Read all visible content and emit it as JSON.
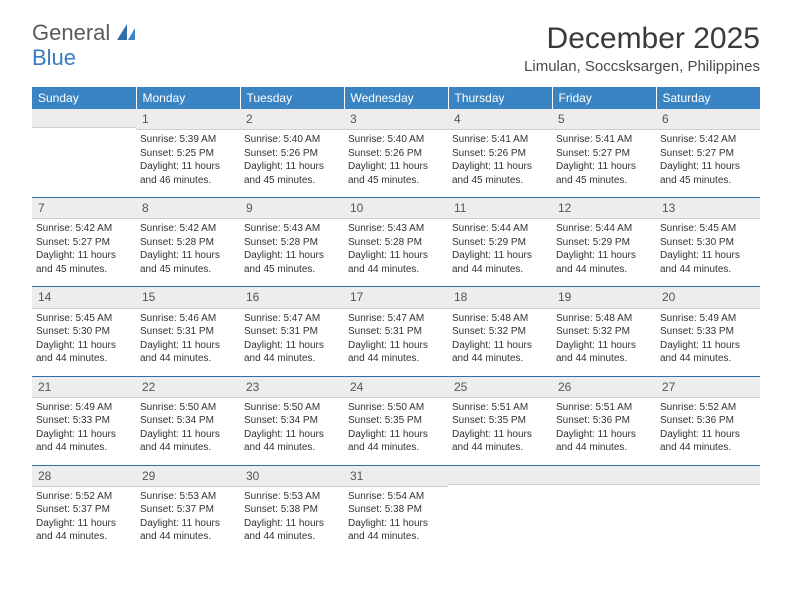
{
  "logo": {
    "word1": "General",
    "word2": "Blue"
  },
  "title": "December 2025",
  "location": "Limulan, Soccsksargen, Philippines",
  "colors": {
    "header_bg": "#3b84c4",
    "header_text": "#ffffff",
    "rule": "#2f6fa8",
    "daynum_bg": "#ededed",
    "text": "#333333",
    "logo_gray": "#5a5a5a",
    "logo_blue": "#3b7bbf"
  },
  "typography": {
    "title_fontsize": 30,
    "location_fontsize": 15,
    "dayheader_fontsize": 12,
    "cell_fontsize": 10
  },
  "day_headers": [
    "Sunday",
    "Monday",
    "Tuesday",
    "Wednesday",
    "Thursday",
    "Friday",
    "Saturday"
  ],
  "weeks": [
    [
      null,
      {
        "n": "1",
        "sunrise": "Sunrise: 5:39 AM",
        "sunset": "Sunset: 5:25 PM",
        "d1": "Daylight: 11 hours",
        "d2": "and 46 minutes."
      },
      {
        "n": "2",
        "sunrise": "Sunrise: 5:40 AM",
        "sunset": "Sunset: 5:26 PM",
        "d1": "Daylight: 11 hours",
        "d2": "and 45 minutes."
      },
      {
        "n": "3",
        "sunrise": "Sunrise: 5:40 AM",
        "sunset": "Sunset: 5:26 PM",
        "d1": "Daylight: 11 hours",
        "d2": "and 45 minutes."
      },
      {
        "n": "4",
        "sunrise": "Sunrise: 5:41 AM",
        "sunset": "Sunset: 5:26 PM",
        "d1": "Daylight: 11 hours",
        "d2": "and 45 minutes."
      },
      {
        "n": "5",
        "sunrise": "Sunrise: 5:41 AM",
        "sunset": "Sunset: 5:27 PM",
        "d1": "Daylight: 11 hours",
        "d2": "and 45 minutes."
      },
      {
        "n": "6",
        "sunrise": "Sunrise: 5:42 AM",
        "sunset": "Sunset: 5:27 PM",
        "d1": "Daylight: 11 hours",
        "d2": "and 45 minutes."
      }
    ],
    [
      {
        "n": "7",
        "sunrise": "Sunrise: 5:42 AM",
        "sunset": "Sunset: 5:27 PM",
        "d1": "Daylight: 11 hours",
        "d2": "and 45 minutes."
      },
      {
        "n": "8",
        "sunrise": "Sunrise: 5:42 AM",
        "sunset": "Sunset: 5:28 PM",
        "d1": "Daylight: 11 hours",
        "d2": "and 45 minutes."
      },
      {
        "n": "9",
        "sunrise": "Sunrise: 5:43 AM",
        "sunset": "Sunset: 5:28 PM",
        "d1": "Daylight: 11 hours",
        "d2": "and 45 minutes."
      },
      {
        "n": "10",
        "sunrise": "Sunrise: 5:43 AM",
        "sunset": "Sunset: 5:28 PM",
        "d1": "Daylight: 11 hours",
        "d2": "and 44 minutes."
      },
      {
        "n": "11",
        "sunrise": "Sunrise: 5:44 AM",
        "sunset": "Sunset: 5:29 PM",
        "d1": "Daylight: 11 hours",
        "d2": "and 44 minutes."
      },
      {
        "n": "12",
        "sunrise": "Sunrise: 5:44 AM",
        "sunset": "Sunset: 5:29 PM",
        "d1": "Daylight: 11 hours",
        "d2": "and 44 minutes."
      },
      {
        "n": "13",
        "sunrise": "Sunrise: 5:45 AM",
        "sunset": "Sunset: 5:30 PM",
        "d1": "Daylight: 11 hours",
        "d2": "and 44 minutes."
      }
    ],
    [
      {
        "n": "14",
        "sunrise": "Sunrise: 5:45 AM",
        "sunset": "Sunset: 5:30 PM",
        "d1": "Daylight: 11 hours",
        "d2": "and 44 minutes."
      },
      {
        "n": "15",
        "sunrise": "Sunrise: 5:46 AM",
        "sunset": "Sunset: 5:31 PM",
        "d1": "Daylight: 11 hours",
        "d2": "and 44 minutes."
      },
      {
        "n": "16",
        "sunrise": "Sunrise: 5:47 AM",
        "sunset": "Sunset: 5:31 PM",
        "d1": "Daylight: 11 hours",
        "d2": "and 44 minutes."
      },
      {
        "n": "17",
        "sunrise": "Sunrise: 5:47 AM",
        "sunset": "Sunset: 5:31 PM",
        "d1": "Daylight: 11 hours",
        "d2": "and 44 minutes."
      },
      {
        "n": "18",
        "sunrise": "Sunrise: 5:48 AM",
        "sunset": "Sunset: 5:32 PM",
        "d1": "Daylight: 11 hours",
        "d2": "and 44 minutes."
      },
      {
        "n": "19",
        "sunrise": "Sunrise: 5:48 AM",
        "sunset": "Sunset: 5:32 PM",
        "d1": "Daylight: 11 hours",
        "d2": "and 44 minutes."
      },
      {
        "n": "20",
        "sunrise": "Sunrise: 5:49 AM",
        "sunset": "Sunset: 5:33 PM",
        "d1": "Daylight: 11 hours",
        "d2": "and 44 minutes."
      }
    ],
    [
      {
        "n": "21",
        "sunrise": "Sunrise: 5:49 AM",
        "sunset": "Sunset: 5:33 PM",
        "d1": "Daylight: 11 hours",
        "d2": "and 44 minutes."
      },
      {
        "n": "22",
        "sunrise": "Sunrise: 5:50 AM",
        "sunset": "Sunset: 5:34 PM",
        "d1": "Daylight: 11 hours",
        "d2": "and 44 minutes."
      },
      {
        "n": "23",
        "sunrise": "Sunrise: 5:50 AM",
        "sunset": "Sunset: 5:34 PM",
        "d1": "Daylight: 11 hours",
        "d2": "and 44 minutes."
      },
      {
        "n": "24",
        "sunrise": "Sunrise: 5:50 AM",
        "sunset": "Sunset: 5:35 PM",
        "d1": "Daylight: 11 hours",
        "d2": "and 44 minutes."
      },
      {
        "n": "25",
        "sunrise": "Sunrise: 5:51 AM",
        "sunset": "Sunset: 5:35 PM",
        "d1": "Daylight: 11 hours",
        "d2": "and 44 minutes."
      },
      {
        "n": "26",
        "sunrise": "Sunrise: 5:51 AM",
        "sunset": "Sunset: 5:36 PM",
        "d1": "Daylight: 11 hours",
        "d2": "and 44 minutes."
      },
      {
        "n": "27",
        "sunrise": "Sunrise: 5:52 AM",
        "sunset": "Sunset: 5:36 PM",
        "d1": "Daylight: 11 hours",
        "d2": "and 44 minutes."
      }
    ],
    [
      {
        "n": "28",
        "sunrise": "Sunrise: 5:52 AM",
        "sunset": "Sunset: 5:37 PM",
        "d1": "Daylight: 11 hours",
        "d2": "and 44 minutes."
      },
      {
        "n": "29",
        "sunrise": "Sunrise: 5:53 AM",
        "sunset": "Sunset: 5:37 PM",
        "d1": "Daylight: 11 hours",
        "d2": "and 44 minutes."
      },
      {
        "n": "30",
        "sunrise": "Sunrise: 5:53 AM",
        "sunset": "Sunset: 5:38 PM",
        "d1": "Daylight: 11 hours",
        "d2": "and 44 minutes."
      },
      {
        "n": "31",
        "sunrise": "Sunrise: 5:54 AM",
        "sunset": "Sunset: 5:38 PM",
        "d1": "Daylight: 11 hours",
        "d2": "and 44 minutes."
      },
      null,
      null,
      null
    ]
  ]
}
